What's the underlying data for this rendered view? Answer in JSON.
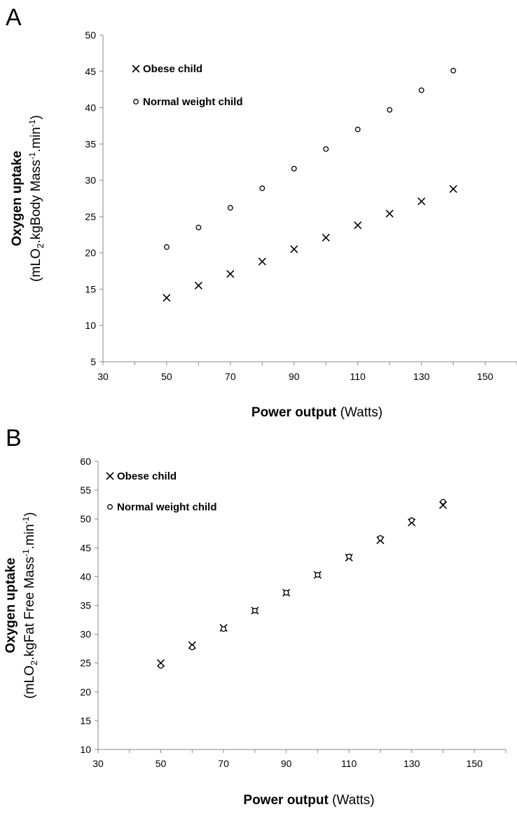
{
  "chart_data": [
    {
      "type": "scatter",
      "panel": "A",
      "title": "",
      "xlabel": {
        "bold": "Power output",
        "rest": " (Watts)"
      },
      "ylabel": {
        "line1": "Oxygen uptake",
        "prefix": "(mLO",
        "sub": "2",
        "mid": ".kgBody Mass",
        "sup1": "-1",
        "after": ".min",
        "sup2": "-1",
        "suffix": ")"
      },
      "xlim": [
        30,
        160
      ],
      "ylim": [
        5,
        50
      ],
      "xticks": [
        30,
        50,
        70,
        90,
        110,
        130,
        150
      ],
      "yticks": [
        5,
        10,
        15,
        20,
        25,
        30,
        35,
        40,
        45,
        50
      ],
      "grid": false,
      "legend_position": "top-left",
      "series": [
        {
          "name": "Obese child",
          "marker": "x",
          "x": [
            50,
            60,
            70,
            80,
            90,
            100,
            110,
            120,
            130,
            140
          ],
          "y": [
            13.8,
            15.5,
            17.1,
            18.8,
            20.5,
            22.1,
            23.8,
            25.4,
            27.1,
            28.8
          ]
        },
        {
          "name": "Normal weight child",
          "marker": "circle",
          "x": [
            50,
            60,
            70,
            80,
            90,
            100,
            110,
            120,
            130,
            140
          ],
          "y": [
            20.8,
            23.5,
            26.2,
            28.9,
            31.6,
            34.3,
            37.0,
            39.7,
            42.4,
            45.1
          ]
        }
      ]
    },
    {
      "type": "scatter",
      "panel": "B",
      "title": "",
      "xlabel": {
        "bold": "Power output",
        "rest": " (Watts)"
      },
      "ylabel": {
        "line1": "Oxygen uptake",
        "prefix": "(mLO",
        "sub": "2",
        "mid": ".kgFat Free Mass",
        "sup1": "-1",
        "after": ".min",
        "sup2": "-1",
        "suffix": ")"
      },
      "xlim": [
        30,
        160
      ],
      "ylim": [
        10,
        60
      ],
      "xticks": [
        30,
        50,
        70,
        90,
        110,
        130,
        150
      ],
      "yticks": [
        10,
        15,
        20,
        25,
        30,
        35,
        40,
        45,
        50,
        55,
        60
      ],
      "grid": false,
      "legend_position": "top-left",
      "series": [
        {
          "name": "Obese child",
          "marker": "x",
          "x": [
            50,
            60,
            70,
            80,
            90,
            100,
            110,
            120,
            130,
            140
          ],
          "y": [
            25.0,
            28.1,
            31.1,
            34.1,
            37.2,
            40.3,
            43.3,
            46.3,
            49.4,
            52.4
          ]
        },
        {
          "name": "Normal weight child",
          "marker": "circle",
          "x": [
            50,
            60,
            70,
            80,
            90,
            100,
            110,
            120,
            130,
            140
          ],
          "y": [
            24.5,
            27.7,
            30.9,
            34.1,
            37.2,
            40.3,
            43.5,
            46.7,
            49.8,
            53.0
          ]
        }
      ]
    }
  ]
}
